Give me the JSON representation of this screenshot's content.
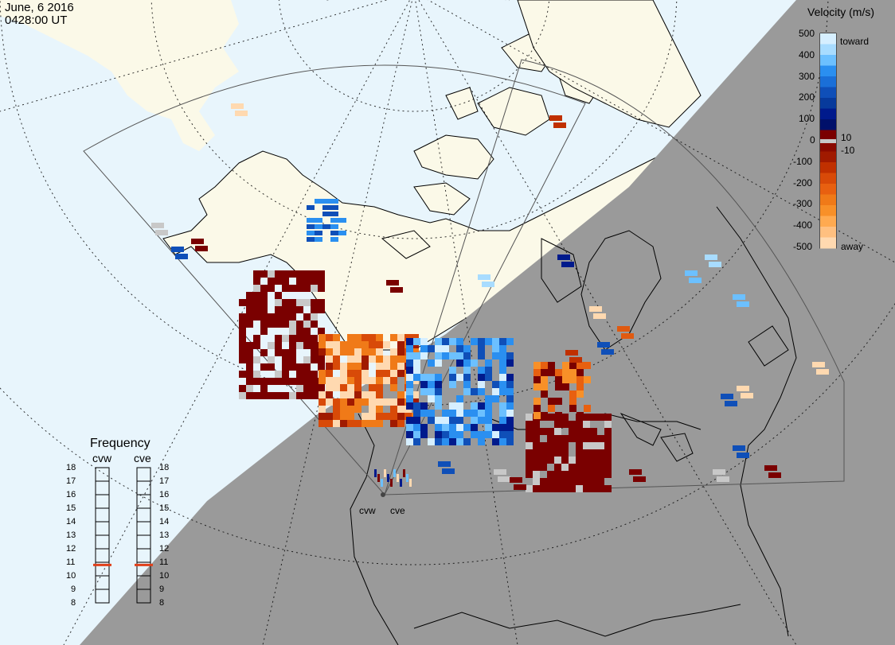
{
  "header": {
    "date": "June, 6 2016",
    "time": "0428:00 UT"
  },
  "colorbar": {
    "title": "Velocity (m/s)",
    "ticks": [
      "500",
      "400",
      "300",
      "200",
      "100",
      "0",
      "-100",
      "-200",
      "-300",
      "-400",
      "-500"
    ],
    "low_ticks": [
      "10",
      "-10"
    ],
    "toward_label": "toward",
    "away_label": "away",
    "colors": {
      "toward_light": "#bfe6ff",
      "toward_mid": "#2a8ff0",
      "toward_dark": "#001a8c",
      "away_dark": "#7a0000",
      "away_mid": "#e05a10",
      "away_light": "#ffd9b0",
      "ground_scatter": "#c8c8c8"
    }
  },
  "frequency_panel": {
    "title": "Frequency",
    "radars": [
      {
        "name": "cvw",
        "value_mhz": 10.8
      },
      {
        "name": "cve",
        "value_mhz": 10.8
      }
    ],
    "scale_labels": [
      "18",
      "17",
      "16",
      "15",
      "14",
      "13",
      "12",
      "11",
      "10",
      "9",
      "8"
    ],
    "indicator_color": "#e0401a"
  },
  "map": {
    "station_labels": [
      "cvw",
      "cve"
    ],
    "colors": {
      "ocean_day": "#e8f5fc",
      "land_day": "#fbf9e8",
      "night": "#9a9a9a",
      "coastline": "#000000",
      "grid": "#000000"
    }
  }
}
